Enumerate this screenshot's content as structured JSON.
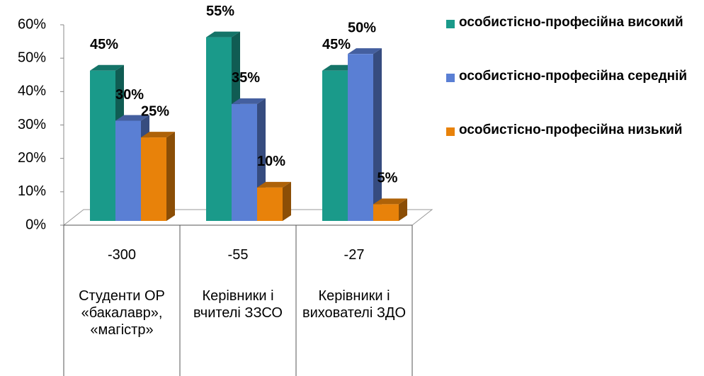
{
  "chart_data": {
    "type": "bar3d",
    "categories": [
      "Студенти ОР «бакалавр», «магістр»",
      "Керівники і вчителі ЗЗСО",
      "Керівники і вихователі ЗДО"
    ],
    "category_counts": [
      "-300",
      "-55",
      "-27"
    ],
    "series": [
      {
        "name": "особистісно-професійна високий",
        "color": "#1a9a8a",
        "values": [
          45,
          55,
          45
        ],
        "value_labels": [
          "45%",
          "55%",
          "45%"
        ]
      },
      {
        "name": "особистісно-професійна середній",
        "color": "#5a7fd4",
        "values": [
          30,
          35,
          50
        ],
        "value_labels": [
          "30%",
          "35%",
          "50%"
        ]
      },
      {
        "name": "особистісно-професійна низький",
        "color": "#e8820a",
        "values": [
          25,
          10,
          5
        ],
        "value_labels": [
          "25%",
          "10%",
          "5%"
        ]
      }
    ],
    "ylim": [
      0,
      60
    ],
    "yticks": [
      {
        "value": 0,
        "label": "0%"
      },
      {
        "value": 10,
        "label": "10%"
      },
      {
        "value": 20,
        "label": "20%"
      },
      {
        "value": 30,
        "label": "30%"
      },
      {
        "value": 40,
        "label": "40%"
      },
      {
        "value": 50,
        "label": "50%"
      },
      {
        "value": 60,
        "label": "60%"
      }
    ]
  }
}
